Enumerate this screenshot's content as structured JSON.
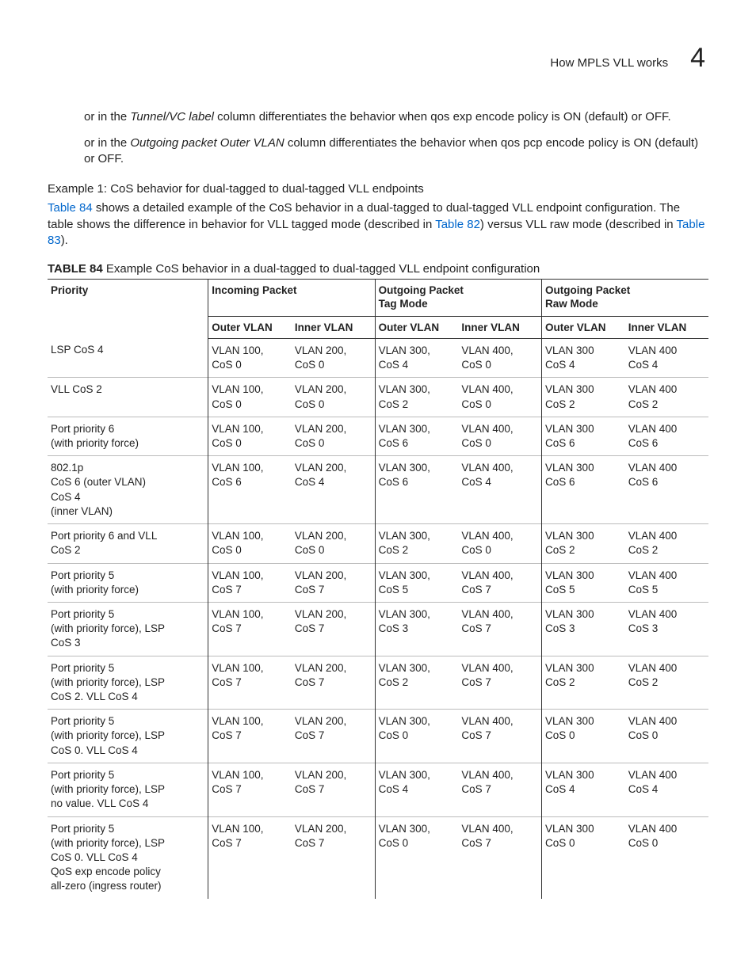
{
  "header": {
    "title": "How MPLS VLL works",
    "chapter": "4"
  },
  "paragraphs": {
    "p1_a": "or in the ",
    "p1_ital": "Tunnel/VC label",
    "p1_b": " column differentiates the behavior when qos exp encode policy is ON (default) or OFF.",
    "p2_a": "or in the ",
    "p2_ital": "Outgoing packet Outer VLAN",
    "p2_b": " column differentiates the behavior when qos pcp encode policy is ON (default) or OFF.",
    "example_title": "Example 1: CoS behavior for dual-tagged to dual-tagged VLL endpoints",
    "p3_link1": "Table 84",
    "p3_a": " shows a detailed example of the CoS behavior in a dual-tagged to dual-tagged VLL endpoint configuration. The table shows the difference in behavior for VLL tagged mode (described in ",
    "p3_link2": "Table 82",
    "p3_b": ") versus VLL raw mode (described in ",
    "p3_link3": "Table 83",
    "p3_c": ")."
  },
  "table": {
    "caption_label": "TABLE 84",
    "caption_text": " Example CoS behavior in a dual-tagged to dual-tagged VLL endpoint configuration",
    "groups": {
      "priority": "Priority",
      "incoming": "Incoming Packet",
      "out_tag": "Outgoing Packet\nTag Mode",
      "out_raw": "Outgoing Packet\nRaw Mode"
    },
    "sub": {
      "outer": "Outer VLAN",
      "inner": "Inner VLAN"
    },
    "rows": [
      {
        "priority": "LSP CoS 4",
        "in_out": "VLAN 100,\nCoS 0",
        "in_in": "VLAN 200,\nCoS 0",
        "tag_out": "VLAN 300,\nCoS 4",
        "tag_in": "VLAN 400,\nCoS 0",
        "raw_out": "VLAN 300\nCoS 4",
        "raw_in": "VLAN 400\nCoS 4"
      },
      {
        "priority": "VLL CoS 2",
        "in_out": "VLAN 100,\nCoS 0",
        "in_in": "VLAN 200,\nCoS 0",
        "tag_out": "VLAN 300,\nCoS 2",
        "tag_in": "VLAN 400,\nCoS 0",
        "raw_out": "VLAN 300\nCoS 2",
        "raw_in": "VLAN 400\nCoS 2"
      },
      {
        "priority": "Port priority 6\n(with priority force)",
        "in_out": "VLAN 100,\nCoS 0",
        "in_in": "VLAN 200,\nCoS 0",
        "tag_out": "VLAN 300,\nCoS 6",
        "tag_in": "VLAN 400,\nCoS 0",
        "raw_out": "VLAN 300\nCoS 6",
        "raw_in": "VLAN 400\nCoS 6"
      },
      {
        "priority": "802.1p\nCoS 6 (outer VLAN)\nCoS 4\n(inner VLAN)",
        "in_out": "VLAN 100,\nCoS 6",
        "in_in": "VLAN 200,\nCoS 4",
        "tag_out": "VLAN 300,\nCoS 6",
        "tag_in": "VLAN 400,\nCoS 4",
        "raw_out": "VLAN 300\nCoS 6",
        "raw_in": "VLAN 400\nCoS 6"
      },
      {
        "priority": "Port priority 6 and VLL\nCoS 2",
        "in_out": "VLAN 100,\nCoS 0",
        "in_in": "VLAN 200,\nCoS 0",
        "tag_out": "VLAN 300,\nCoS 2",
        "tag_in": "VLAN 400,\nCoS 0",
        "raw_out": "VLAN 300\nCoS 2",
        "raw_in": "VLAN 400\nCoS 2"
      },
      {
        "priority": "Port priority 5\n(with priority force)",
        "in_out": "VLAN 100,\nCoS 7",
        "in_in": "VLAN 200,\nCoS 7",
        "tag_out": "VLAN 300,\nCoS 5",
        "tag_in": "VLAN 400,\nCoS 7",
        "raw_out": "VLAN 300\nCoS 5",
        "raw_in": "VLAN 400\nCoS 5"
      },
      {
        "priority": "Port priority 5\n(with priority force), LSP\nCoS 3",
        "in_out": "VLAN 100,\nCoS 7",
        "in_in": "VLAN 200,\nCoS 7",
        "tag_out": "VLAN 300,\nCoS 3",
        "tag_in": "VLAN 400,\nCoS 7",
        "raw_out": "VLAN 300\nCoS 3",
        "raw_in": "VLAN 400\nCoS 3"
      },
      {
        "priority": "Port priority 5\n(with priority force), LSP\nCoS 2. VLL CoS 4",
        "in_out": "VLAN 100,\nCoS 7",
        "in_in": "VLAN 200,\nCoS 7",
        "tag_out": "VLAN 300,\nCoS 2",
        "tag_in": "VLAN 400,\nCoS 7",
        "raw_out": "VLAN 300\nCoS 2",
        "raw_in": "VLAN 400\nCoS 2"
      },
      {
        "priority": "Port priority 5\n(with priority force), LSP\nCoS 0. VLL CoS 4",
        "in_out": "VLAN 100,\nCoS 7",
        "in_in": "VLAN 200,\nCoS 7",
        "tag_out": "VLAN 300,\nCoS 0",
        "tag_in": "VLAN 400,\nCoS 7",
        "raw_out": "VLAN 300\nCoS 0",
        "raw_in": "VLAN 400\nCoS 0"
      },
      {
        "priority": "Port priority 5\n(with priority force), LSP\nno value. VLL CoS 4",
        "in_out": "VLAN 100,\nCoS 7",
        "in_in": "VLAN 200,\nCoS 7",
        "tag_out": "VLAN 300,\nCoS 4",
        "tag_in": "VLAN 400,\nCoS 7",
        "raw_out": "VLAN 300\nCoS 4",
        "raw_in": "VLAN 400\nCoS 4"
      },
      {
        "priority": "Port priority 5\n(with priority force), LSP\nCoS 0. VLL CoS 4\nQoS exp encode policy\nall-zero (ingress router)",
        "in_out": "VLAN 100,\nCoS 7",
        "in_in": "VLAN 200,\nCoS 7",
        "tag_out": "VLAN 300,\nCoS 0",
        "tag_in": "VLAN 400,\nCoS 7",
        "raw_out": "VLAN 300\nCoS 0",
        "raw_in": "VLAN 400\nCoS 0"
      }
    ]
  },
  "style": {
    "link_color": "#0066cc",
    "text_color": "#222222",
    "rule_color": "#333333",
    "row_rule_color": "#bbbbbb"
  }
}
